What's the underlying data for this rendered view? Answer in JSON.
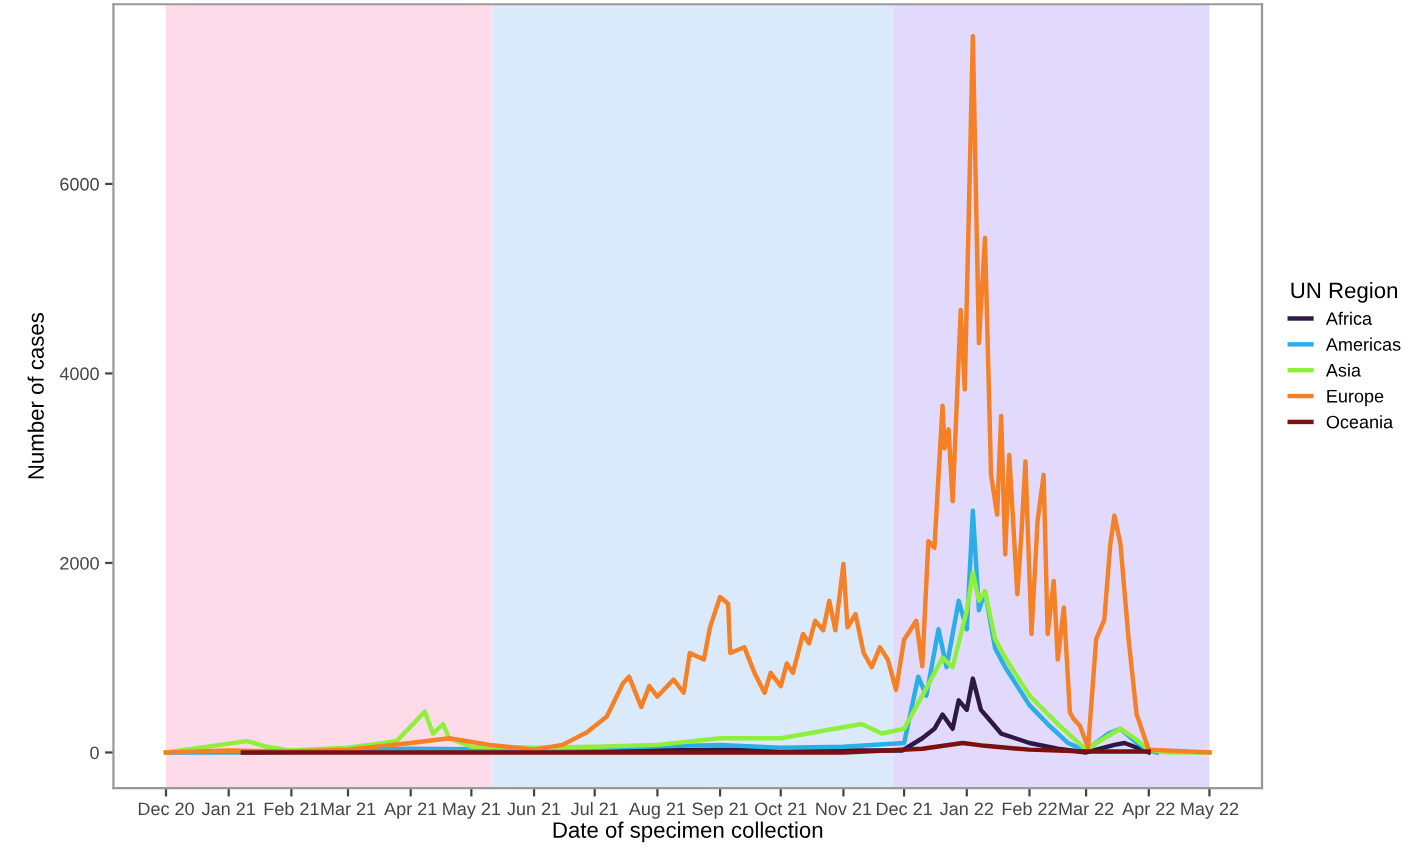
{
  "chart_data": {
    "type": "line",
    "xlabel": "Date of specimen collection",
    "ylabel": "Number of cases",
    "legend_title": "UN Region",
    "legend": "right",
    "grid": false,
    "marker": "none",
    "line_style": "solid",
    "xlim": [
      "2020-11-05",
      "2022-05-27"
    ],
    "ylim": [
      -376,
      7896
    ],
    "yticks": [
      0,
      2000,
      4000,
      6000
    ],
    "xticks": [
      {
        "value": "2020-12-01",
        "label": "Dec 20"
      },
      {
        "value": "2021-01-01",
        "label": "Jan 21"
      },
      {
        "value": "2021-02-01",
        "label": "Feb 21"
      },
      {
        "value": "2021-03-01",
        "label": "Mar 21"
      },
      {
        "value": "2021-04-01",
        "label": "Apr 21"
      },
      {
        "value": "2021-05-01",
        "label": "May 21"
      },
      {
        "value": "2021-06-01",
        "label": "Jun 21"
      },
      {
        "value": "2021-07-01",
        "label": "Jul 21"
      },
      {
        "value": "2021-08-01",
        "label": "Aug 21"
      },
      {
        "value": "2021-09-01",
        "label": "Sep 21"
      },
      {
        "value": "2021-10-01",
        "label": "Oct 21"
      },
      {
        "value": "2021-11-01",
        "label": "Nov 21"
      },
      {
        "value": "2021-12-01",
        "label": "Dec 21"
      },
      {
        "value": "2022-01-01",
        "label": "Jan 22"
      },
      {
        "value": "2022-02-01",
        "label": "Feb 22"
      },
      {
        "value": "2022-03-01",
        "label": "Mar 22"
      },
      {
        "value": "2022-04-01",
        "label": "Apr 22"
      },
      {
        "value": "2022-05-01",
        "label": "May 22"
      }
    ],
    "bands": [
      {
        "axis": "x",
        "from": "2020-12-01",
        "to": "2021-05-11",
        "color": "#fddbe8"
      },
      {
        "axis": "x",
        "from": "2021-05-11",
        "to": "2021-11-26",
        "color": "#dbeafb"
      },
      {
        "axis": "x",
        "from": "2021-11-26",
        "to": "2022-05-01",
        "color": "#e2dafc"
      }
    ],
    "series": [
      {
        "name": "Africa",
        "color": "#2d1846",
        "x": [
          "2021-01-08",
          "2021-04-01",
          "2021-06-01",
          "2021-09-01",
          "2021-11-01",
          "2021-11-30",
          "2021-12-10",
          "2021-12-16",
          "2021-12-20",
          "2021-12-25",
          "2021-12-28",
          "2022-01-01",
          "2022-01-04",
          "2022-01-08",
          "2022-01-12",
          "2022-01-18",
          "2022-01-25",
          "2022-02-01",
          "2022-02-15",
          "2022-03-01",
          "2022-03-15",
          "2022-03-20",
          "2022-03-25",
          "2022-04-01"
        ],
        "values": [
          0,
          20,
          10,
          30,
          20,
          20,
          150,
          250,
          400,
          250,
          550,
          450,
          780,
          450,
          350,
          200,
          150,
          100,
          40,
          0,
          80,
          100,
          60,
          0
        ]
      },
      {
        "name": "Americas",
        "color": "#29aee8",
        "x": [
          "2020-12-01",
          "2021-01-08",
          "2021-04-01",
          "2021-06-01",
          "2021-09-01",
          "2021-10-01",
          "2021-11-01",
          "2021-12-01",
          "2021-12-08",
          "2021-12-12",
          "2021-12-18",
          "2021-12-22",
          "2021-12-28",
          "2022-01-01",
          "2022-01-04",
          "2022-01-07",
          "2022-01-10",
          "2022-01-15",
          "2022-01-20",
          "2022-02-01",
          "2022-02-10",
          "2022-02-20",
          "2022-03-01",
          "2022-03-12",
          "2022-03-18",
          "2022-03-25",
          "2022-04-01",
          "2022-04-05"
        ],
        "values": [
          0,
          0,
          40,
          30,
          80,
          50,
          60,
          100,
          800,
          600,
          1300,
          900,
          1600,
          1300,
          2550,
          1500,
          1700,
          1100,
          900,
          500,
          300,
          100,
          20,
          200,
          250,
          120,
          20,
          0
        ]
      },
      {
        "name": "Asia",
        "color": "#8ef03c",
        "x": [
          "2020-12-01",
          "2021-01-10",
          "2021-01-20",
          "2021-02-01",
          "2021-03-01",
          "2021-03-25",
          "2021-04-08",
          "2021-04-12",
          "2021-04-17",
          "2021-04-20",
          "2021-05-01",
          "2021-06-01",
          "2021-07-01",
          "2021-08-01",
          "2021-09-01",
          "2021-10-01",
          "2021-11-10",
          "2021-11-20",
          "2021-12-01",
          "2021-12-10",
          "2021-12-20",
          "2021-12-25",
          "2022-01-01",
          "2022-01-04",
          "2022-01-07",
          "2022-01-10",
          "2022-01-15",
          "2022-01-20",
          "2022-02-01",
          "2022-02-15",
          "2022-03-01",
          "2022-03-10",
          "2022-03-18",
          "2022-03-25",
          "2022-04-01",
          "2022-04-10",
          "2022-05-01"
        ],
        "values": [
          0,
          120,
          60,
          20,
          50,
          120,
          430,
          200,
          300,
          150,
          60,
          50,
          60,
          80,
          150,
          150,
          300,
          200,
          250,
          600,
          1000,
          900,
          1500,
          1900,
          1600,
          1700,
          1200,
          1000,
          600,
          300,
          30,
          150,
          250,
          150,
          30,
          0,
          0
        ]
      },
      {
        "name": "Europe",
        "color": "#f58025",
        "x": [
          "2020-12-01",
          "2021-01-01",
          "2021-02-01",
          "2021-03-01",
          "2021-04-01",
          "2021-04-20",
          "2021-05-10",
          "2021-06-01",
          "2021-06-15",
          "2021-06-27",
          "2021-07-07",
          "2021-07-15",
          "2021-07-18",
          "2021-07-24",
          "2021-07-28",
          "2021-08-01",
          "2021-08-09",
          "2021-08-14",
          "2021-08-17",
          "2021-08-24",
          "2021-08-27",
          "2021-09-01",
          "2021-09-05",
          "2021-09-06",
          "2021-09-13",
          "2021-09-18",
          "2021-09-23",
          "2021-09-26",
          "2021-10-01",
          "2021-10-04",
          "2021-10-07",
          "2021-10-12",
          "2021-10-15",
          "2021-10-18",
          "2021-10-22",
          "2021-10-25",
          "2021-10-28",
          "2021-11-01",
          "2021-11-03",
          "2021-11-07",
          "2021-11-11",
          "2021-11-15",
          "2021-11-19",
          "2021-11-23",
          "2021-11-27",
          "2021-12-01",
          "2021-12-07",
          "2021-12-10",
          "2021-12-13",
          "2021-12-16",
          "2021-12-20",
          "2021-12-21",
          "2021-12-23",
          "2021-12-25",
          "2021-12-29",
          "2021-12-31",
          "2022-01-04",
          "2022-01-07",
          "2022-01-10",
          "2022-01-13",
          "2022-01-16",
          "2022-01-18",
          "2022-01-20",
          "2022-01-22",
          "2022-01-26",
          "2022-01-28",
          "2022-01-30",
          "2022-02-02",
          "2022-02-05",
          "2022-02-08",
          "2022-02-10",
          "2022-02-13",
          "2022-02-15",
          "2022-02-18",
          "2022-02-21",
          "2022-02-23",
          "2022-02-26",
          "2022-03-02",
          "2022-03-06",
          "2022-03-10",
          "2022-03-13",
          "2022-03-15",
          "2022-03-18",
          "2022-03-20",
          "2022-03-22",
          "2022-03-26",
          "2022-04-01",
          "2022-05-01"
        ],
        "values": [
          0,
          20,
          10,
          30,
          100,
          150,
          80,
          30,
          80,
          210,
          380,
          730,
          800,
          480,
          700,
          590,
          770,
          630,
          1050,
          980,
          1320,
          1640,
          1570,
          1050,
          1110,
          840,
          630,
          840,
          700,
          940,
          840,
          1250,
          1150,
          1390,
          1290,
          1600,
          1290,
          1990,
          1320,
          1460,
          1050,
          900,
          1110,
          980,
          660,
          1190,
          1390,
          910,
          2230,
          2160,
          3660,
          3210,
          3410,
          2650,
          4670,
          3830,
          7560,
          4320,
          5430,
          2930,
          2510,
          3550,
          2090,
          3140,
          1670,
          2300,
          3070,
          1250,
          2440,
          2930,
          1250,
          1810,
          980,
          1530,
          420,
          350,
          280,
          50,
          1200,
          1400,
          2200,
          2500,
          2200,
          1700,
          1200,
          400,
          30,
          0
        ]
      },
      {
        "name": "Oceania",
        "color": "#7a1010",
        "x": [
          "2021-01-08",
          "2021-06-01",
          "2021-11-01",
          "2021-12-10",
          "2021-12-30",
          "2022-01-10",
          "2022-02-01",
          "2022-03-01",
          "2022-04-01"
        ],
        "values": [
          0,
          0,
          0,
          40,
          100,
          70,
          30,
          10,
          10
        ]
      }
    ]
  }
}
